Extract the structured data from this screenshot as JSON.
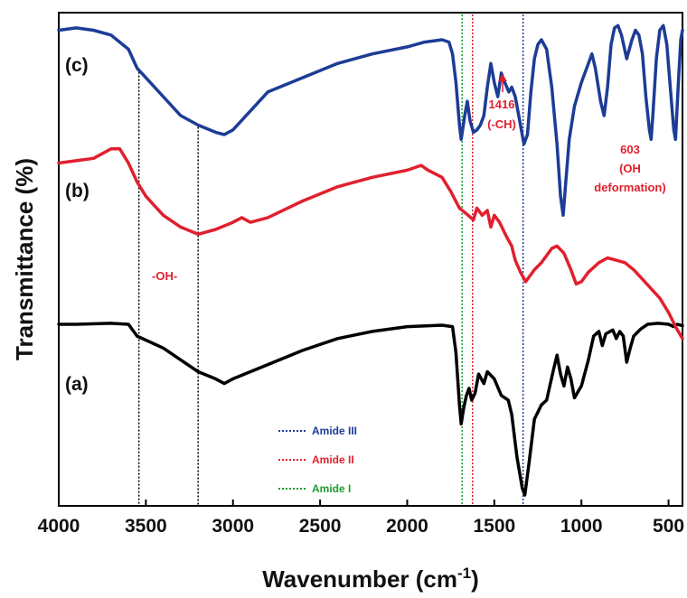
{
  "chart_data": {
    "type": "line",
    "title": "",
    "xlabel": "Wavenumber (cm",
    "xlabel_sup": "-1",
    "xlabel_end": ")",
    "ylabel": "Transmittance (%)",
    "xlim": [
      4000,
      420
    ],
    "x_inverted": true,
    "y_ticks_shown": false,
    "x_ticks": [
      4000,
      3500,
      3000,
      2500,
      2000,
      1500,
      1000,
      500
    ],
    "y_units": "arbitrary (stacked offsets)",
    "series": [
      {
        "name": "(a)",
        "color": "#000000",
        "points": [
          [
            4000,
            3.6
          ],
          [
            3900,
            3.6
          ],
          [
            3700,
            3.62
          ],
          [
            3600,
            3.6
          ],
          [
            3550,
            3.35
          ],
          [
            3400,
            3.1
          ],
          [
            3300,
            2.85
          ],
          [
            3200,
            2.6
          ],
          [
            3100,
            2.45
          ],
          [
            3050,
            2.35
          ],
          [
            3000,
            2.45
          ],
          [
            2800,
            2.75
          ],
          [
            2600,
            3.05
          ],
          [
            2400,
            3.3
          ],
          [
            2200,
            3.45
          ],
          [
            2000,
            3.55
          ],
          [
            1800,
            3.58
          ],
          [
            1740,
            3.55
          ],
          [
            1720,
            3.0
          ],
          [
            1700,
            1.9
          ],
          [
            1690,
            1.5
          ],
          [
            1675,
            1.85
          ],
          [
            1660,
            2.1
          ],
          [
            1645,
            2.25
          ],
          [
            1630,
            2.0
          ],
          [
            1610,
            2.15
          ],
          [
            1590,
            2.55
          ],
          [
            1560,
            2.35
          ],
          [
            1540,
            2.6
          ],
          [
            1500,
            2.45
          ],
          [
            1460,
            2.1
          ],
          [
            1420,
            2.0
          ],
          [
            1400,
            1.7
          ],
          [
            1370,
            0.8
          ],
          [
            1340,
            0.15
          ],
          [
            1325,
            0.0
          ],
          [
            1300,
            0.7
          ],
          [
            1270,
            1.6
          ],
          [
            1230,
            1.9
          ],
          [
            1200,
            2.0
          ],
          [
            1160,
            2.65
          ],
          [
            1140,
            2.95
          ],
          [
            1120,
            2.55
          ],
          [
            1100,
            2.3
          ],
          [
            1080,
            2.7
          ],
          [
            1060,
            2.45
          ],
          [
            1040,
            2.05
          ],
          [
            1000,
            2.3
          ],
          [
            960,
            2.85
          ],
          [
            930,
            3.35
          ],
          [
            900,
            3.45
          ],
          [
            880,
            3.15
          ],
          [
            860,
            3.4
          ],
          [
            820,
            3.48
          ],
          [
            800,
            3.3
          ],
          [
            780,
            3.45
          ],
          [
            760,
            3.35
          ],
          [
            740,
            2.8
          ],
          [
            720,
            3.1
          ],
          [
            700,
            3.35
          ],
          [
            660,
            3.5
          ],
          [
            620,
            3.6
          ],
          [
            560,
            3.62
          ],
          [
            500,
            3.6
          ],
          [
            470,
            3.55
          ],
          [
            450,
            3.6
          ],
          [
            420,
            3.57
          ]
        ]
      },
      {
        "name": "(b)",
        "color": "#e0202e",
        "points": [
          [
            4000,
            7.0
          ],
          [
            3900,
            7.05
          ],
          [
            3800,
            7.1
          ],
          [
            3700,
            7.3
          ],
          [
            3650,
            7.3
          ],
          [
            3600,
            7.0
          ],
          [
            3550,
            6.6
          ],
          [
            3500,
            6.3
          ],
          [
            3400,
            5.9
          ],
          [
            3300,
            5.65
          ],
          [
            3200,
            5.5
          ],
          [
            3100,
            5.6
          ],
          [
            3000,
            5.75
          ],
          [
            2950,
            5.85
          ],
          [
            2900,
            5.75
          ],
          [
            2800,
            5.85
          ],
          [
            2600,
            6.2
          ],
          [
            2400,
            6.5
          ],
          [
            2200,
            6.7
          ],
          [
            2000,
            6.85
          ],
          [
            1920,
            6.95
          ],
          [
            1880,
            6.85
          ],
          [
            1800,
            6.7
          ],
          [
            1750,
            6.4
          ],
          [
            1700,
            6.05
          ],
          [
            1650,
            5.9
          ],
          [
            1620,
            5.8
          ],
          [
            1600,
            6.05
          ],
          [
            1570,
            5.9
          ],
          [
            1540,
            6.0
          ],
          [
            1520,
            5.65
          ],
          [
            1500,
            5.9
          ],
          [
            1470,
            5.75
          ],
          [
            1430,
            5.45
          ],
          [
            1400,
            5.25
          ],
          [
            1380,
            4.95
          ],
          [
            1350,
            4.7
          ],
          [
            1320,
            4.5
          ],
          [
            1300,
            4.6
          ],
          [
            1270,
            4.75
          ],
          [
            1230,
            4.9
          ],
          [
            1200,
            5.05
          ],
          [
            1170,
            5.2
          ],
          [
            1140,
            5.25
          ],
          [
            1100,
            5.1
          ],
          [
            1060,
            4.75
          ],
          [
            1030,
            4.45
          ],
          [
            1000,
            4.5
          ],
          [
            960,
            4.7
          ],
          [
            900,
            4.9
          ],
          [
            850,
            5.0
          ],
          [
            800,
            4.95
          ],
          [
            750,
            4.9
          ],
          [
            700,
            4.75
          ],
          [
            650,
            4.55
          ],
          [
            600,
            4.35
          ],
          [
            550,
            4.15
          ],
          [
            500,
            3.85
          ],
          [
            460,
            3.55
          ],
          [
            420,
            3.3
          ]
        ]
      },
      {
        "name": "(c)",
        "color": "#1c3c96",
        "points": [
          [
            4000,
            9.8
          ],
          [
            3900,
            9.85
          ],
          [
            3800,
            9.8
          ],
          [
            3700,
            9.7
          ],
          [
            3600,
            9.4
          ],
          [
            3550,
            9.0
          ],
          [
            3500,
            8.8
          ],
          [
            3400,
            8.4
          ],
          [
            3300,
            8.0
          ],
          [
            3200,
            7.8
          ],
          [
            3100,
            7.65
          ],
          [
            3050,
            7.6
          ],
          [
            3000,
            7.7
          ],
          [
            2900,
            8.1
          ],
          [
            2800,
            8.5
          ],
          [
            2600,
            8.8
          ],
          [
            2400,
            9.1
          ],
          [
            2200,
            9.3
          ],
          [
            2000,
            9.45
          ],
          [
            1900,
            9.55
          ],
          [
            1800,
            9.6
          ],
          [
            1760,
            9.55
          ],
          [
            1740,
            9.3
          ],
          [
            1720,
            8.7
          ],
          [
            1700,
            7.8
          ],
          [
            1690,
            7.5
          ],
          [
            1670,
            8.0
          ],
          [
            1655,
            8.3
          ],
          [
            1640,
            7.9
          ],
          [
            1620,
            7.65
          ],
          [
            1600,
            7.7
          ],
          [
            1580,
            7.8
          ],
          [
            1560,
            8.0
          ],
          [
            1540,
            8.6
          ],
          [
            1520,
            9.1
          ],
          [
            1500,
            8.7
          ],
          [
            1480,
            8.4
          ],
          [
            1460,
            8.9
          ],
          [
            1440,
            8.7
          ],
          [
            1416,
            8.5
          ],
          [
            1400,
            8.6
          ],
          [
            1380,
            8.4
          ],
          [
            1350,
            7.8
          ],
          [
            1330,
            7.4
          ],
          [
            1310,
            7.6
          ],
          [
            1290,
            8.5
          ],
          [
            1270,
            9.2
          ],
          [
            1250,
            9.5
          ],
          [
            1230,
            9.6
          ],
          [
            1200,
            9.4
          ],
          [
            1170,
            8.6
          ],
          [
            1140,
            7.4
          ],
          [
            1120,
            6.3
          ],
          [
            1105,
            5.9
          ],
          [
            1090,
            6.6
          ],
          [
            1070,
            7.5
          ],
          [
            1040,
            8.2
          ],
          [
            1000,
            8.7
          ],
          [
            960,
            9.1
          ],
          [
            940,
            9.3
          ],
          [
            920,
            9.0
          ],
          [
            890,
            8.3
          ],
          [
            870,
            8.0
          ],
          [
            850,
            8.6
          ],
          [
            830,
            9.5
          ],
          [
            810,
            9.85
          ],
          [
            790,
            9.9
          ],
          [
            770,
            9.7
          ],
          [
            740,
            9.2
          ],
          [
            710,
            9.6
          ],
          [
            690,
            9.8
          ],
          [
            670,
            9.7
          ],
          [
            650,
            9.3
          ],
          [
            630,
            8.4
          ],
          [
            610,
            7.7
          ],
          [
            600,
            7.5
          ],
          [
            590,
            8.0
          ],
          [
            570,
            9.2
          ],
          [
            550,
            9.8
          ],
          [
            530,
            9.9
          ],
          [
            510,
            9.5
          ],
          [
            490,
            8.6
          ],
          [
            470,
            7.7
          ],
          [
            460,
            7.5
          ],
          [
            445,
            8.6
          ],
          [
            430,
            9.6
          ],
          [
            420,
            9.8
          ]
        ]
      }
    ],
    "reference_lines": [
      {
        "x": 3540,
        "color": "#000000",
        "style": "dotted",
        "top_curve": "c"
      },
      {
        "x": 3200,
        "color": "#000000",
        "style": "dotted",
        "top_curve": "c"
      },
      {
        "x": 1685,
        "color": "#1a9e2a",
        "style": "dotted",
        "top_curve": "frame"
      },
      {
        "x": 1625,
        "color": "#e0202e",
        "style": "dotted",
        "top_curve": "frame"
      },
      {
        "x": 1335,
        "color": "#1c3c96",
        "style": "dotted",
        "top_curve": "frame"
      }
    ],
    "curve_labels": [
      "(a)",
      "(b)",
      "(c)"
    ],
    "annotations": [
      {
        "lines": [
          "-OH-"
        ],
        "color": "#e0202e"
      },
      {
        "lines": [
          "1416",
          "(-CH)"
        ],
        "color": "#e0202e",
        "arrow_x": 1416
      },
      {
        "lines": [
          "603",
          "(OH",
          "deformation)"
        ],
        "color": "#e0202e"
      }
    ],
    "legend": {
      "placement": "bottom-center",
      "items": [
        {
          "label": "Amide III",
          "color": "#1c3c96"
        },
        {
          "label": "Amide II",
          "color": "#e0202e"
        },
        {
          "label": "Amide I",
          "color": "#1a9e2a"
        }
      ]
    }
  }
}
